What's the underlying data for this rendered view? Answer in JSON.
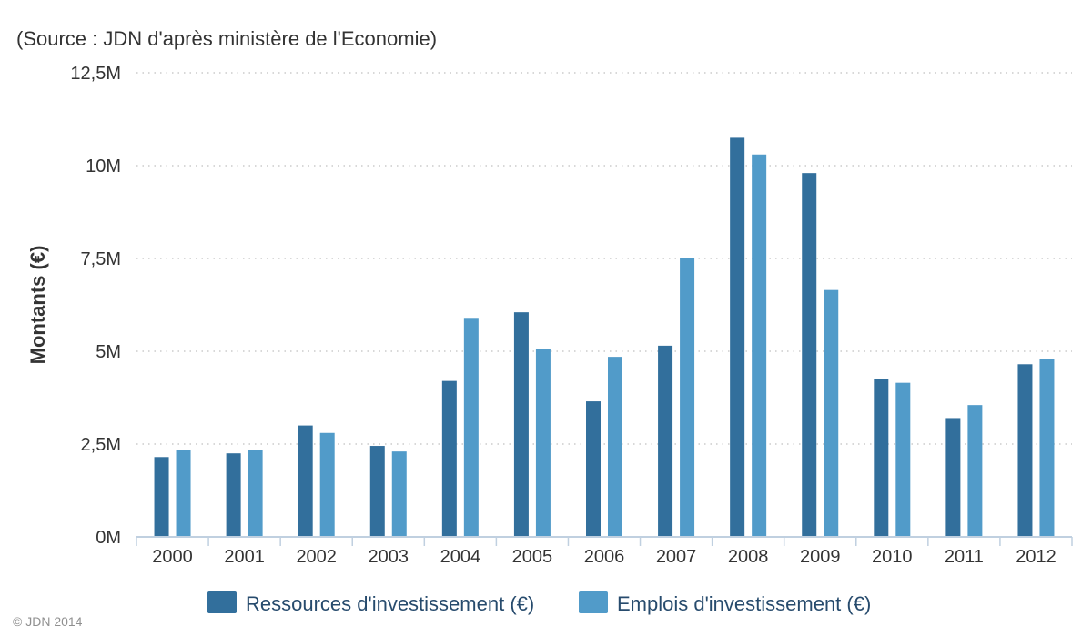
{
  "chart_data": {
    "type": "bar",
    "subtitle": "(Source : JDN d'après ministère de l'Economie)",
    "ylabel": "Montants (€)",
    "xlabel": "",
    "ylim": [
      0,
      12500000
    ],
    "yticks": [
      {
        "value": 0,
        "label": "0M"
      },
      {
        "value": 2500000,
        "label": "2,5M"
      },
      {
        "value": 5000000,
        "label": "5M"
      },
      {
        "value": 7500000,
        "label": "7,5M"
      },
      {
        "value": 10000000,
        "label": "10M"
      },
      {
        "value": 12500000,
        "label": "12,5M"
      }
    ],
    "categories": [
      "2000",
      "2001",
      "2002",
      "2003",
      "2004",
      "2005",
      "2006",
      "2007",
      "2008",
      "2009",
      "2010",
      "2011",
      "2012"
    ],
    "series": [
      {
        "name": "Ressources d'investissement (€)",
        "color": "#2f7ed8",
        "values": [
          2150000,
          2250000,
          3000000,
          2450000,
          4200000,
          6050000,
          3650000,
          5150000,
          10750000,
          9800000,
          4250000,
          3200000,
          4650000
        ]
      },
      {
        "name": "Emplois d'investissement (€)",
        "color": "#4f9fd6",
        "values": [
          2350000,
          2350000,
          2800000,
          2300000,
          5900000,
          5050000,
          4850000,
          7500000,
          10300000,
          6650000,
          4150000,
          3550000,
          4800000
        ]
      }
    ],
    "grid": true,
    "legend_position": "bottom-center"
  },
  "colors": {
    "series1": "#326f9c",
    "series2": "#519bc9",
    "grid": "#c0c0c0",
    "axis": "#c0d0e0"
  },
  "credit": "© JDN 2014"
}
